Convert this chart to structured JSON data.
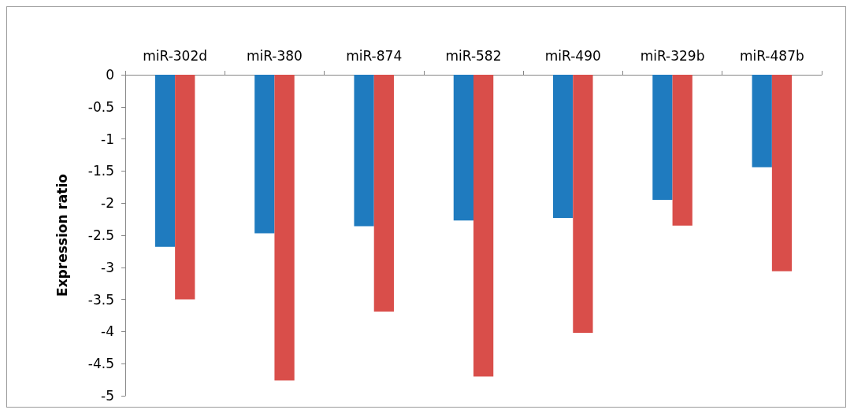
{
  "chart_data": {
    "type": "bar",
    "ylabel": "Expression ratio",
    "categories": [
      "miR-302d",
      "miR-380",
      "miR-874",
      "miR-582",
      "miR-490",
      "miR-329b",
      "miR-487b"
    ],
    "series": [
      {
        "color": "#1f7bbf",
        "values": [
          -2.68,
          -2.47,
          -2.36,
          -2.27,
          -2.23,
          -1.95,
          -1.44
        ]
      },
      {
        "color": "#d94e4a",
        "values": [
          -3.5,
          -4.76,
          -3.69,
          -4.7,
          -4.02,
          -2.35,
          -3.06
        ]
      }
    ],
    "ylim": [
      -5,
      0
    ],
    "yticks": [
      -5,
      -4.5,
      -4,
      -3.5,
      -3,
      -2.5,
      -2,
      -1.5,
      -1,
      -0.5,
      0
    ],
    "grid": false
  }
}
